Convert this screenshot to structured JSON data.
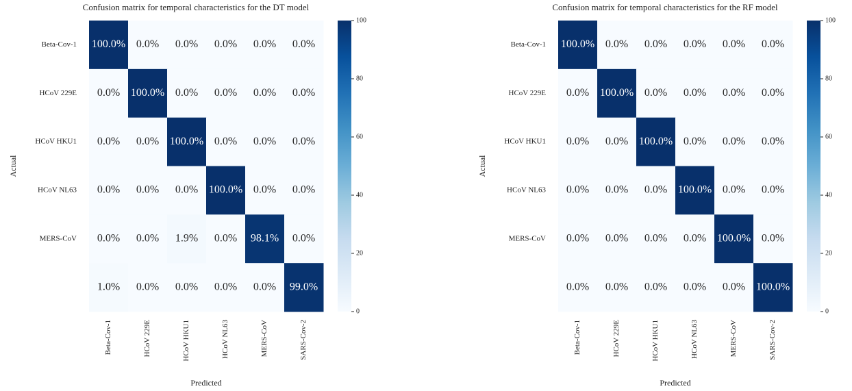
{
  "chart_data": [
    {
      "type": "heatmap",
      "title": "Confusion matrix for temporal characteristics for the DT model",
      "x_label": "Predicted",
      "y_label": "Actual",
      "x_categories": [
        "Beta-Cov-1",
        "HCoV 229E",
        "HCoV HKU1",
        "HCoV NL63",
        "MERS-CoV",
        "SARS-Cov-2"
      ],
      "y_categories": [
        "Beta-Cov-1",
        "HCoV 229E",
        "HCoV HKU1",
        "HCoV NL63",
        "MERS-CoV",
        null
      ],
      "values": [
        [
          100,
          0,
          0,
          0,
          0,
          0
        ],
        [
          0,
          100,
          0,
          0,
          0,
          0
        ],
        [
          0,
          0,
          100,
          0,
          0,
          0
        ],
        [
          0,
          0,
          0,
          100,
          0,
          0
        ],
        [
          0,
          0,
          1.9,
          0,
          98.1,
          0
        ],
        [
          1,
          0,
          0,
          0,
          0,
          99
        ]
      ],
      "value_labels": [
        [
          "100.0%",
          "0.0%",
          "0.0%",
          "0.0%",
          "0.0%",
          "0.0%"
        ],
        [
          "0.0%",
          "100.0%",
          "0.0%",
          "0.0%",
          "0.0%",
          "0.0%"
        ],
        [
          "0.0%",
          "0.0%",
          "100.0%",
          "0.0%",
          "0.0%",
          "0.0%"
        ],
        [
          "0.0%",
          "0.0%",
          "0.0%",
          "100.0%",
          "0.0%",
          "0.0%"
        ],
        [
          "0.0%",
          "0.0%",
          "1.9%",
          "0.0%",
          "98.1%",
          "0.0%"
        ],
        [
          "1.0%",
          "0.0%",
          "0.0%",
          "0.0%",
          "0.0%",
          "99.0%"
        ]
      ],
      "colormap": "Blues",
      "clim": [
        0,
        100
      ],
      "cticks": [
        0,
        20,
        40,
        60,
        80,
        100
      ]
    },
    {
      "type": "heatmap",
      "title": "Confusion matrix for temporal characteristics for the RF model",
      "x_label": "Predicted",
      "y_label": "Actual",
      "x_categories": [
        "Beta-Cov-1",
        "HCoV 229E",
        "HCoV HKU1",
        "HCoV NL63",
        "MERS-CoV",
        "SARS-Cov-2"
      ],
      "y_categories": [
        "Beta-Cov-1",
        "HCoV 229E",
        "HCoV HKU1",
        "HCoV NL63",
        "MERS-CoV",
        null
      ],
      "values": [
        [
          100,
          0,
          0,
          0,
          0,
          0
        ],
        [
          0,
          100,
          0,
          0,
          0,
          0
        ],
        [
          0,
          0,
          100,
          0,
          0,
          0
        ],
        [
          0,
          0,
          0,
          100,
          0,
          0
        ],
        [
          0,
          0,
          0,
          0,
          100,
          0
        ],
        [
          0,
          0,
          0,
          0,
          0,
          100
        ]
      ],
      "value_labels": [
        [
          "100.0%",
          "0.0%",
          "0.0%",
          "0.0%",
          "0.0%",
          "0.0%"
        ],
        [
          "0.0%",
          "100.0%",
          "0.0%",
          "0.0%",
          "0.0%",
          "0.0%"
        ],
        [
          "0.0%",
          "0.0%",
          "100.0%",
          "0.0%",
          "0.0%",
          "0.0%"
        ],
        [
          "0.0%",
          "0.0%",
          "0.0%",
          "100.0%",
          "0.0%",
          "0.0%"
        ],
        [
          "0.0%",
          "0.0%",
          "0.0%",
          "0.0%",
          "100.0%",
          "0.0%"
        ],
        [
          "0.0%",
          "0.0%",
          "0.0%",
          "0.0%",
          "0.0%",
          "100.0%"
        ]
      ],
      "colormap": "Blues",
      "clim": [
        0,
        100
      ],
      "cticks": [
        0,
        20,
        40,
        60,
        80,
        100
      ]
    }
  ]
}
